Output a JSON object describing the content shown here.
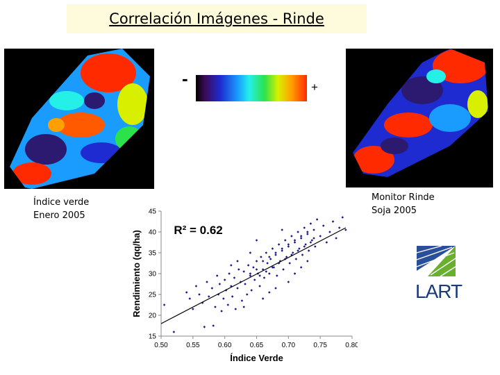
{
  "title": "Correlación Imágenes - Rinde",
  "colorbar": {
    "minus": "-",
    "plus": "+"
  },
  "captions": {
    "left": [
      "Índice verde",
      "Enero 2005"
    ],
    "right": [
      "Monitor Rinde",
      "Soja 2005"
    ]
  },
  "logo_text": "LART",
  "chart_data": {
    "type": "scatter",
    "xlabel": "Índice Verde",
    "ylabel": "Rendimiento (qq/ha)",
    "xlim": [
      0.5,
      0.8
    ],
    "ylim": [
      15,
      45
    ],
    "xticks": [
      "0.50",
      "0.55",
      "0.60",
      "0.65",
      "0.70",
      "0.75",
      "0.80"
    ],
    "yticks": [
      "15",
      "20",
      "25",
      "30",
      "35",
      "40",
      "45"
    ],
    "annotation": "R² = 0.62",
    "trendline": {
      "x": [
        0.5,
        0.79
      ],
      "y": [
        18.0,
        41.0
      ]
    },
    "points": [
      [
        0.505,
        22.5
      ],
      [
        0.52,
        16.0
      ],
      [
        0.54,
        25.5
      ],
      [
        0.545,
        24.0
      ],
      [
        0.55,
        21.5
      ],
      [
        0.555,
        27.0
      ],
      [
        0.56,
        25.0
      ],
      [
        0.565,
        23.0
      ],
      [
        0.568,
        17.2
      ],
      [
        0.572,
        28.0
      ],
      [
        0.575,
        24.5
      ],
      [
        0.58,
        26.5
      ],
      [
        0.582,
        17.5
      ],
      [
        0.585,
        22.0
      ],
      [
        0.588,
        29.5
      ],
      [
        0.59,
        25.0
      ],
      [
        0.592,
        27.5
      ],
      [
        0.595,
        21.0
      ],
      [
        0.598,
        24.0
      ],
      [
        0.6,
        28.5
      ],
      [
        0.602,
        26.0
      ],
      [
        0.605,
        22.5
      ],
      [
        0.607,
        30.0
      ],
      [
        0.61,
        27.0
      ],
      [
        0.612,
        24.5
      ],
      [
        0.615,
        29.0
      ],
      [
        0.617,
        21.5
      ],
      [
        0.62,
        26.5
      ],
      [
        0.622,
        31.0
      ],
      [
        0.625,
        28.0
      ],
      [
        0.627,
        23.5
      ],
      [
        0.63,
        30.5
      ],
      [
        0.632,
        27.5
      ],
      [
        0.635,
        25.0
      ],
      [
        0.637,
        32.0
      ],
      [
        0.64,
        29.5
      ],
      [
        0.642,
        26.0
      ],
      [
        0.645,
        31.5
      ],
      [
        0.647,
        28.5
      ],
      [
        0.65,
        33.0
      ],
      [
        0.652,
        30.0
      ],
      [
        0.655,
        27.0
      ],
      [
        0.657,
        34.0
      ],
      [
        0.66,
        31.0
      ],
      [
        0.662,
        29.0
      ],
      [
        0.665,
        35.0
      ],
      [
        0.667,
        32.5
      ],
      [
        0.67,
        30.0
      ],
      [
        0.672,
        33.5
      ],
      [
        0.675,
        36.0
      ],
      [
        0.677,
        31.5
      ],
      [
        0.68,
        34.5
      ],
      [
        0.682,
        29.5
      ],
      [
        0.685,
        37.0
      ],
      [
        0.687,
        33.0
      ],
      [
        0.69,
        35.5
      ],
      [
        0.692,
        31.0
      ],
      [
        0.695,
        38.0
      ],
      [
        0.697,
        34.0
      ],
      [
        0.7,
        36.5
      ],
      [
        0.702,
        32.5
      ],
      [
        0.705,
        39.0
      ],
      [
        0.707,
        35.0
      ],
      [
        0.71,
        37.5
      ],
      [
        0.712,
        33.5
      ],
      [
        0.715,
        40.0
      ],
      [
        0.717,
        36.0
      ],
      [
        0.72,
        38.5
      ],
      [
        0.722,
        34.5
      ],
      [
        0.725,
        41.0
      ],
      [
        0.727,
        37.0
      ],
      [
        0.73,
        39.5
      ],
      [
        0.732,
        35.5
      ],
      [
        0.735,
        42.0
      ],
      [
        0.737,
        38.0
      ],
      [
        0.74,
        40.5
      ],
      [
        0.742,
        36.5
      ],
      [
        0.745,
        43.0
      ],
      [
        0.75,
        39.0
      ],
      [
        0.755,
        41.5
      ],
      [
        0.76,
        37.5
      ],
      [
        0.765,
        40.0
      ],
      [
        0.77,
        42.5
      ],
      [
        0.775,
        38.5
      ],
      [
        0.78,
        41.0
      ],
      [
        0.785,
        43.5
      ],
      [
        0.79,
        40.5
      ],
      [
        0.66,
        24.0
      ],
      [
        0.68,
        26.5
      ],
      [
        0.7,
        28.0
      ],
      [
        0.64,
        35.0
      ],
      [
        0.63,
        22.0
      ],
      [
        0.69,
        40.5
      ],
      [
        0.71,
        30.0
      ],
      [
        0.62,
        33.0
      ],
      [
        0.72,
        31.5
      ],
      [
        0.65,
        38.0
      ],
      [
        0.67,
        25.5
      ],
      [
        0.73,
        33.0
      ],
      [
        0.61,
        32.0
      ],
      [
        0.655,
        29.5
      ],
      [
        0.665,
        30.5
      ],
      [
        0.675,
        31.5
      ],
      [
        0.685,
        32.5
      ],
      [
        0.695,
        33.5
      ],
      [
        0.705,
        34.5
      ],
      [
        0.715,
        35.5
      ],
      [
        0.725,
        36.5
      ],
      [
        0.735,
        37.5
      ],
      [
        0.66,
        33.0
      ],
      [
        0.67,
        34.0
      ],
      [
        0.68,
        35.0
      ],
      [
        0.69,
        36.0
      ],
      [
        0.7,
        37.0
      ],
      [
        0.71,
        38.0
      ],
      [
        0.72,
        39.0
      ],
      [
        0.73,
        40.0
      ],
      [
        0.74,
        38.5
      ],
      [
        0.65,
        31.0
      ],
      [
        0.64,
        30.0
      ]
    ]
  }
}
